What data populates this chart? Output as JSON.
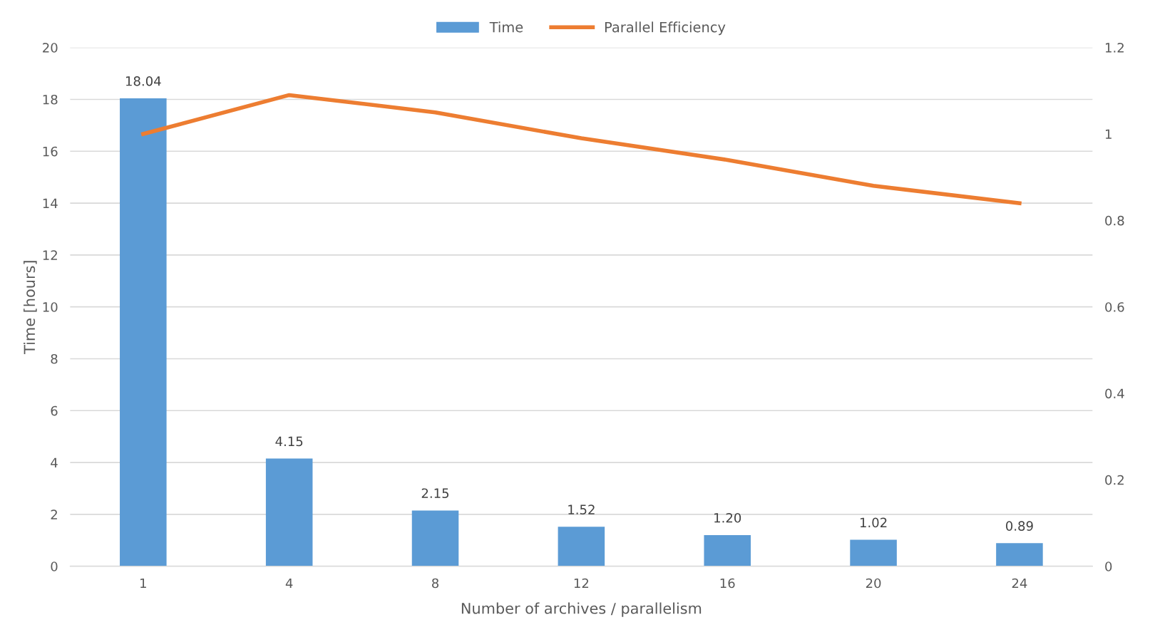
{
  "chart_data": {
    "type": "bar",
    "xlabel": "Number of archives / parallelism",
    "ylabel": "Time [hours]",
    "categories": [
      "1",
      "4",
      "8",
      "12",
      "16",
      "20",
      "24"
    ],
    "series": [
      {
        "name": "Time",
        "color": "#5b9bd5",
        "values": [
          18.04,
          4.15,
          2.15,
          1.52,
          1.2,
          1.02,
          0.89
        ],
        "value_labels": [
          "18.04",
          "4.15",
          "2.15",
          "1.52",
          "1.20",
          "1.02",
          "0.89"
        ]
      },
      {
        "name": "Parallel Efficiency",
        "type": "line",
        "axis": "y2",
        "color": "#ed7d31",
        "values": [
          1.0,
          1.09,
          1.05,
          0.99,
          0.94,
          0.88,
          0.84
        ]
      }
    ],
    "ylim": [
      0,
      20
    ],
    "yticks": [
      0,
      2,
      4,
      6,
      8,
      10,
      12,
      14,
      16,
      18,
      20
    ],
    "y2lim": [
      0,
      1.2
    ],
    "y2ticks": [
      0,
      0.2,
      0.4,
      0.6,
      0.8,
      1,
      1.2
    ],
    "grid": "y",
    "legend": "top",
    "marker": "none",
    "line_style": "solid"
  }
}
